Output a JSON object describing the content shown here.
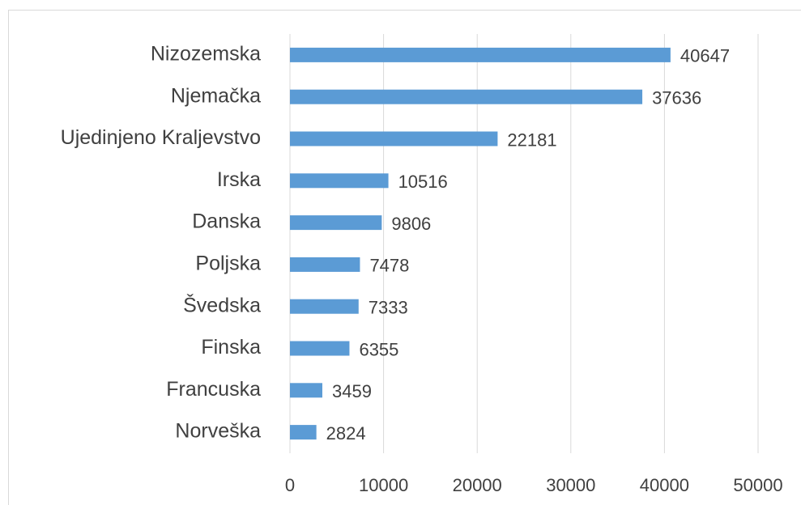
{
  "chart_data": {
    "type": "bar",
    "orientation": "horizontal",
    "categories": [
      "Nizozemska",
      "Njemačka",
      "Ujedinjeno Kraljevstvo",
      "Irska",
      "Danska",
      "Poljska",
      "Švedska",
      "Finska",
      "Francuska",
      "Norveška"
    ],
    "values": [
      40647,
      37636,
      22181,
      10516,
      9806,
      7478,
      7333,
      6355,
      3459,
      2824
    ],
    "color": "#5b9bd5",
    "xlim": [
      0,
      50000
    ],
    "xticks": [
      0,
      10000,
      20000,
      30000,
      40000,
      50000
    ],
    "grid": true
  }
}
